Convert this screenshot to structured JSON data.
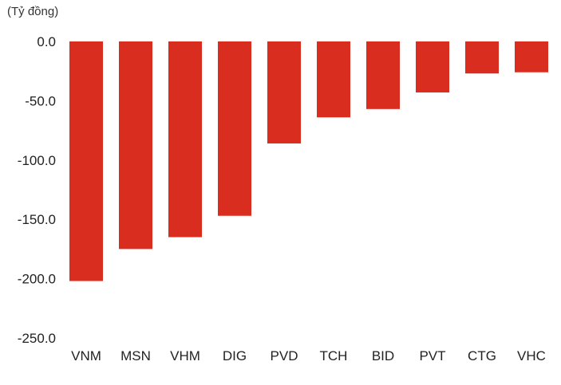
{
  "chart_data": {
    "type": "bar",
    "unit_label": "(Tỷ đồng)",
    "categories": [
      "VNM",
      "MSN",
      "VHM",
      "DIG",
      "PVD",
      "TCH",
      "BID",
      "PVT",
      "CTG",
      "VHC"
    ],
    "values": [
      -202.0,
      -175.0,
      -165.0,
      -147.0,
      -86.0,
      -64.0,
      -57.0,
      -43.0,
      -27.0,
      -26.0
    ],
    "ylim": [
      -250,
      0
    ],
    "yticks": [
      0,
      -50,
      -100,
      -150,
      -200,
      -250
    ],
    "ytick_labels": [
      "0.0",
      "-50.0",
      "-100.0",
      "-150.0",
      "-200.0",
      "-250.0"
    ],
    "bar_color": "#d92d20",
    "grid": false,
    "legend": false
  }
}
